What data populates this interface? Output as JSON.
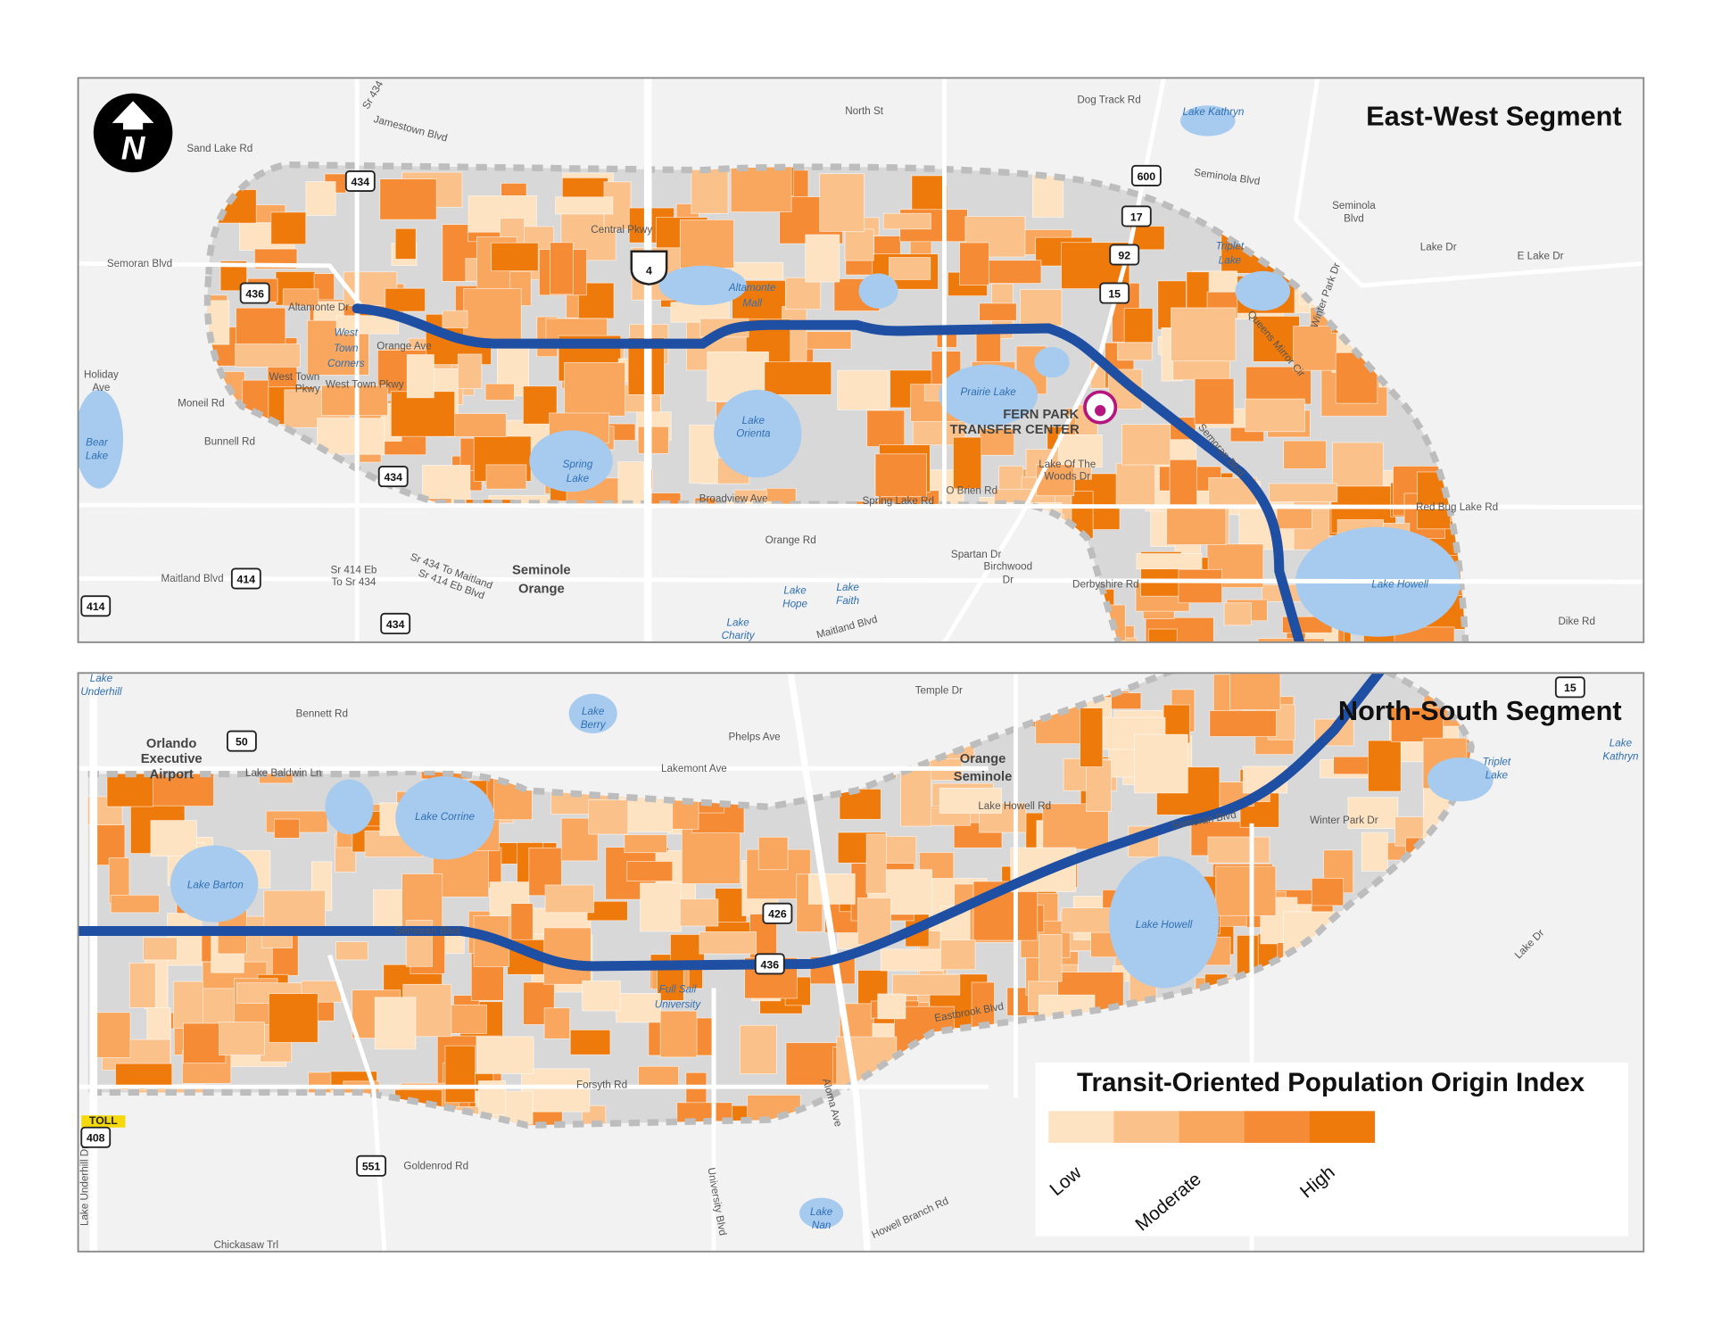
{
  "north_arrow": "N",
  "panels": [
    {
      "title": "East-West Segment",
      "labels": [
        "Sand Lake Rd",
        "Jamestown Blvd",
        "Sr 434",
        "North St",
        "Dog Track Rd",
        "Lake Kathryn",
        "Seminola Blvd",
        "Seminola",
        "Blvd",
        "Semoran Blvd",
        "Central Pkwy",
        "Altamonte",
        "Mall",
        "Altamonte Dr",
        "West",
        "Town",
        "Corners",
        "Orange Ave",
        "West Town",
        "Pkwy",
        "West Town Pkwy",
        "Holiday",
        "Ave",
        "Moneil Rd",
        "Bunnell Rd",
        "Bear",
        "Lake",
        "Spring",
        "Lake",
        "Lake",
        "Orienta",
        "Prairie Lake",
        "FERN PARK",
        "TRANSFER CENTER",
        "Broadview Ave",
        "Spring Lake Rd",
        "O Brien Rd",
        "Orange Rd",
        "Red Bug Lake Rd",
        "Lake Howell",
        "Lake Dr",
        "E Lake Dr",
        "Triplet",
        "Lake",
        "Seminole",
        "Orange",
        "Maitland Blvd",
        "Sr 414 Eb",
        "To Sr 434",
        "Sr 434 To Maitland",
        "Sr 414 Eb Blvd",
        "Lake",
        "Hope",
        "Lake",
        "Faith",
        "Lake",
        "Charity",
        "Maitland Blvd",
        "Spartan Dr",
        "Birchwood",
        "Dr",
        "Derbyshire Rd",
        "Dike Rd",
        "Lake Of The",
        "Woods Dr",
        "Semoran Blvd",
        "Queens Mirror Cir",
        "Winter Park Dr"
      ],
      "shields": [
        "434",
        "436",
        "434",
        "414",
        "414",
        "434",
        "4",
        "600",
        "17",
        "92",
        "15"
      ]
    },
    {
      "title": "North-South Segment",
      "labels": [
        "Lake",
        "Underhill",
        "Bennett Rd",
        "Orlando",
        "Executive",
        "Airport",
        "Lake",
        "Berry",
        "Temple Dr",
        "Phelps Ave",
        "Lakemont Ave",
        "Lake Baldwin Ln",
        "Lake Corrine",
        "Lake Barton",
        "Orange",
        "Seminole",
        "Lake Howell Rd",
        "Semoran Blvd",
        "Winter Park Dr",
        "Triplet",
        "Lake",
        "Lake",
        "Kathryn",
        "Semoran Blvd",
        "Full Sail",
        "University",
        "Lake Howell",
        "Eastbrook Blvd",
        "Forsyth Rd",
        "Goldenrod Rd",
        "Chickasaw Trl",
        "Lake",
        "Nan",
        "Howell Branch Rd",
        "Lake Dr",
        "Aloma Ave",
        "Lake Underhill Dr",
        "University Blvd",
        "TOLL"
      ],
      "shields": [
        "50",
        "426",
        "436",
        "408",
        "551",
        "15"
      ]
    }
  ],
  "legend": {
    "title": "Transit-Oriented Population Origin Index",
    "labels": [
      "Low",
      "Moderate",
      "High"
    ],
    "colors": [
      "#fde3c2",
      "#fbc18a",
      "#f9a75e",
      "#f58c35",
      "#ef7a0c"
    ]
  }
}
